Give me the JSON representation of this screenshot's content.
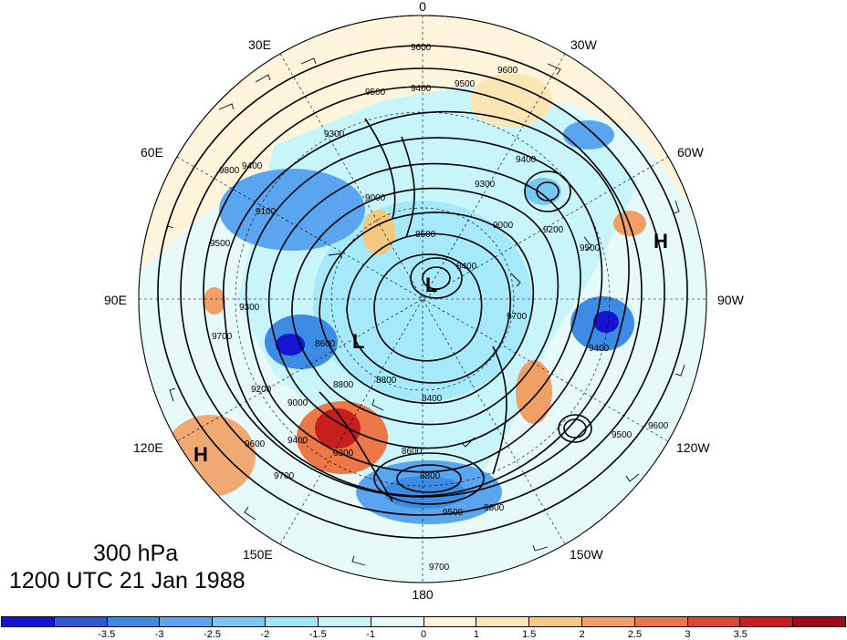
{
  "map": {
    "longitude_labels": {
      "lon_0": "0",
      "lon_30w": "30W",
      "lon_60w": "60W",
      "lon_90w": "90W",
      "lon_120w": "120W",
      "lon_150w": "150W",
      "lon_180": "180",
      "lon_150e": "150E",
      "lon_120e": "120E",
      "lon_90e": "90E",
      "lon_60e": "60E",
      "lon_30e": "30E"
    },
    "pressure_centers": {
      "low_1": "L",
      "low_2": "L",
      "high_1": "H",
      "high_2": "H"
    },
    "contour_labels": {
      "c1": "9600",
      "c2": "9400",
      "c3": "9500",
      "c4": "9600",
      "c5": "9500",
      "c6": "9300",
      "c7": "9400",
      "c8": "9100",
      "c9": "9000",
      "c10": "8800",
      "c11": "8600",
      "c12": "8500",
      "c13": "9300",
      "c14": "9000",
      "c15": "9200",
      "c16": "9500",
      "c17": "8400",
      "c18": "9700",
      "c19": "9400",
      "c20": "9500",
      "c21": "9600",
      "c22": "9200",
      "c23": "9000",
      "c24": "9400",
      "c25": "9300",
      "c26": "9600",
      "c27": "9700",
      "c28": "8800",
      "c29": "8600",
      "c30": "9500",
      "c31": "9600",
      "c32": "9700",
      "c33": "9500",
      "c34": "9800",
      "c35": "9400",
      "c36": "9300",
      "c37": "9700",
      "c38": "8400",
      "c39": "8800"
    },
    "colors": {
      "strong_negative": "#1414d2",
      "negative": "#5aa5f0",
      "weak_negative": "#b4f0fa",
      "weak_positive": "#fae6b4",
      "positive": "#f0a064",
      "strong_positive": "#c81e1e"
    }
  },
  "title": {
    "level": "300 hPa",
    "datetime": "1200 UTC 21 Jan 1988"
  },
  "colorbar": {
    "colors": [
      "#1414d2",
      "#2d5ad2",
      "#3c8ce6",
      "#5aa5f0",
      "#78c8f5",
      "#a0e6fa",
      "#c8f5fa",
      "#e6fafa",
      "#fff5dc",
      "#fae6b4",
      "#f5c882",
      "#f0a064",
      "#eb7846",
      "#dc4632",
      "#c81e1e",
      "#a00a14"
    ],
    "ticks": [
      "-3.5",
      "-3",
      "-2.5",
      "-2",
      "-1.5",
      "-1",
      "0",
      "1",
      "1.5",
      "2",
      "2.5",
      "3",
      "3.5"
    ]
  }
}
